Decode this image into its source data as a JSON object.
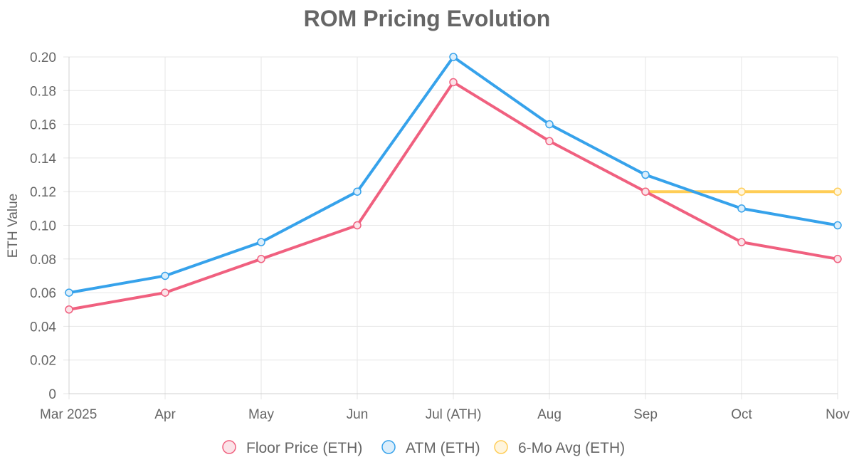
{
  "chart_data": {
    "type": "line",
    "title": "ROM Pricing Evolution",
    "xlabel": "",
    "ylabel": "ETH Value",
    "categories": [
      "Mar 2025",
      "Apr",
      "May",
      "Jun",
      "Jul (ATH)",
      "Aug",
      "Sep",
      "Oct",
      "Nov"
    ],
    "ylim": [
      0,
      0.2
    ],
    "yticks": [
      0,
      0.02,
      0.04,
      0.06,
      0.08,
      0.1,
      0.12,
      0.14,
      0.16,
      0.18,
      0.2
    ],
    "ytick_labels": [
      "0",
      "0.02",
      "0.04",
      "0.06",
      "0.08",
      "0.10",
      "0.12",
      "0.14",
      "0.16",
      "0.18",
      "0.20"
    ],
    "grid": true,
    "legend_position": "bottom",
    "series": [
      {
        "name": "Floor Price (ETH)",
        "color": "#f0607f",
        "fill": "#fbe3e8",
        "values": [
          0.05,
          0.06,
          0.08,
          0.1,
          0.185,
          0.15,
          0.12,
          0.09,
          0.08
        ]
      },
      {
        "name": "ATM (ETH)",
        "color": "#36a2eb",
        "fill": "#dbeefb",
        "values": [
          0.06,
          0.07,
          0.09,
          0.12,
          0.2,
          0.16,
          0.13,
          0.11,
          0.1
        ]
      },
      {
        "name": "6-Mo Avg (ETH)",
        "color": "#ffcd56",
        "fill": "#fff5dd",
        "values": [
          null,
          null,
          null,
          null,
          null,
          null,
          0.12,
          0.12,
          0.12
        ]
      }
    ]
  }
}
